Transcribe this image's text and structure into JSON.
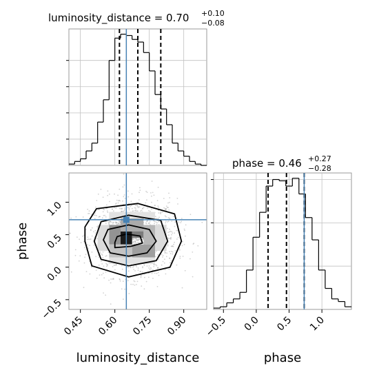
{
  "figure": {
    "panel_1_title": {
      "main": "luminosity_distance = 0.70",
      "sup": "+0.10",
      "sub": "−0.08"
    },
    "panel_2_title": {
      "main": "phase = 0.46",
      "sup": "+0.27",
      "sub": "−0.28"
    },
    "colors": {
      "truth": "#4682b4",
      "line": "#000000",
      "grid": "#c0c0c0",
      "scatter": "#9a9a9a"
    }
  },
  "chart_data": [
    {
      "type": "histogram",
      "parameter": "luminosity_distance",
      "x_range": [
        0.4,
        1.0
      ],
      "bins": [
        0.4,
        0.425,
        0.45,
        0.475,
        0.5,
        0.525,
        0.55,
        0.575,
        0.6,
        0.625,
        0.65,
        0.675,
        0.7,
        0.725,
        0.75,
        0.775,
        0.8,
        0.825,
        0.85,
        0.875,
        0.9,
        0.925,
        0.95,
        0.975,
        1.0
      ],
      "counts": [
        1,
        3,
        5,
        11,
        17,
        33,
        50,
        80,
        97,
        100,
        99,
        96,
        94,
        86,
        72,
        54,
        43,
        31,
        17,
        11,
        7,
        3,
        1,
        0
      ],
      "quantiles": [
        0.62,
        0.7,
        0.8
      ],
      "truth": 0.65,
      "grid": true
    },
    {
      "type": "histogram",
      "parameter": "phase",
      "x_range": [
        -0.65,
        1.45
      ],
      "bins": [
        -0.65,
        -0.55,
        -0.45,
        -0.35,
        -0.25,
        -0.15,
        -0.05,
        0.05,
        0.15,
        0.25,
        0.35,
        0.45,
        0.55,
        0.65,
        0.75,
        0.85,
        0.95,
        1.05,
        1.15,
        1.25,
        1.35,
        1.45
      ],
      "counts": [
        1,
        2,
        5,
        8,
        13,
        30,
        55,
        74,
        94,
        99,
        98,
        94,
        100,
        88,
        70,
        53,
        30,
        16,
        8,
        6,
        2
      ],
      "quantiles": [
        0.18,
        0.46,
        0.73
      ],
      "truth": 0.73,
      "x_ticks": [
        "−0.5",
        "0.0",
        "0.5",
        "1.0"
      ],
      "x_tick_values": [
        -0.5,
        0.0,
        0.5,
        1.0
      ],
      "xlabel": "phase",
      "grid": true
    },
    {
      "type": "2d-histogram-contour",
      "x_parameter": "luminosity_distance",
      "y_parameter": "phase",
      "x_range": [
        0.4,
        1.0
      ],
      "y_range": [
        -0.65,
        1.45
      ],
      "x_ticks": [
        "0.45",
        "0.60",
        "0.75",
        "0.90"
      ],
      "x_tick_values": [
        0.45,
        0.6,
        0.75,
        0.9
      ],
      "y_ticks": [
        "−0.5",
        "0.0",
        "0.5",
        "1.0"
      ],
      "y_tick_values": [
        -0.5,
        0.0,
        0.5,
        1.0
      ],
      "xlabel": "luminosity_distance",
      "ylabel": "phase",
      "truth": {
        "x": 0.65,
        "y": 0.73
      },
      "density_cells": [
        {
          "x0": 0.625,
          "x1": 0.675,
          "y0": 0.35,
          "y1": 0.55,
          "level": 0.95
        },
        {
          "x0": 0.675,
          "x1": 0.725,
          "y0": 0.45,
          "y1": 0.65,
          "level": 0.55
        },
        {
          "x0": 0.575,
          "x1": 0.625,
          "y0": 0.35,
          "y1": 0.65,
          "level": 0.45
        },
        {
          "x0": 0.625,
          "x1": 0.725,
          "y0": 0.55,
          "y1": 0.75,
          "level": 0.35
        },
        {
          "x0": 0.675,
          "x1": 0.775,
          "y0": 0.15,
          "y1": 0.35,
          "level": 0.4
        },
        {
          "x0": 0.725,
          "x1": 0.775,
          "y0": 0.35,
          "y1": 0.65,
          "level": 0.3
        },
        {
          "x0": 0.575,
          "x1": 0.675,
          "y0": 0.15,
          "y1": 0.35,
          "level": 0.25
        },
        {
          "x0": 0.525,
          "x1": 0.575,
          "y0": 0.25,
          "y1": 0.65,
          "level": 0.15
        },
        {
          "x0": 0.775,
          "x1": 0.825,
          "y0": 0.25,
          "y1": 0.65,
          "level": 0.15
        },
        {
          "x0": 0.575,
          "x1": 0.775,
          "y0": 0.75,
          "y1": 0.85,
          "level": 0.12
        },
        {
          "x0": 0.575,
          "x1": 0.775,
          "y0": 0.05,
          "y1": 0.15,
          "level": 0.12
        }
      ],
      "contours": [
        [
          [
            0.6,
            0.3
          ],
          [
            0.67,
            0.32
          ],
          [
            0.72,
            0.37
          ],
          [
            0.71,
            0.48
          ],
          [
            0.65,
            0.51
          ],
          [
            0.61,
            0.47
          ],
          [
            0.6,
            0.38
          ]
        ],
        [
          [
            0.55,
            0.42
          ],
          [
            0.58,
            0.22
          ],
          [
            0.66,
            0.17
          ],
          [
            0.74,
            0.22
          ],
          [
            0.78,
            0.4
          ],
          [
            0.75,
            0.58
          ],
          [
            0.66,
            0.65
          ],
          [
            0.57,
            0.58
          ]
        ],
        [
          [
            0.51,
            0.4
          ],
          [
            0.54,
            0.12
          ],
          [
            0.66,
            0.02
          ],
          [
            0.78,
            0.1
          ],
          [
            0.83,
            0.4
          ],
          [
            0.8,
            0.72
          ],
          [
            0.66,
            0.8
          ],
          [
            0.54,
            0.7
          ]
        ],
        [
          [
            0.47,
            0.4
          ],
          [
            0.5,
            0.02
          ],
          [
            0.66,
            -0.15
          ],
          [
            0.84,
            0.0
          ],
          [
            0.89,
            0.4
          ],
          [
            0.86,
            0.82
          ],
          [
            0.7,
            0.98
          ],
          [
            0.52,
            0.9
          ],
          [
            0.47,
            0.62
          ]
        ]
      ],
      "grid": false
    }
  ]
}
